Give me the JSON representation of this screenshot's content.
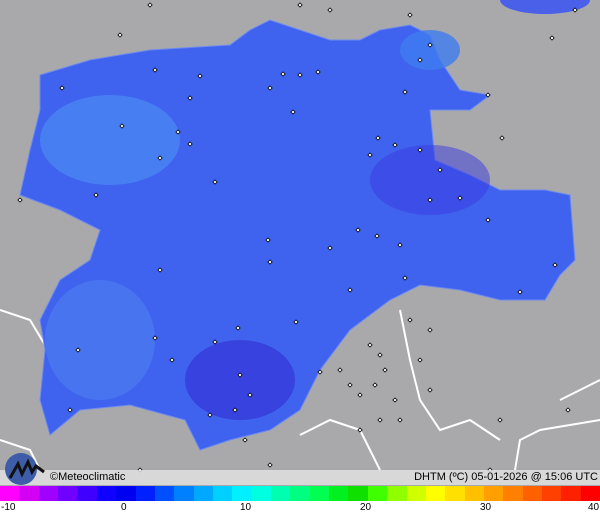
{
  "map": {
    "credit": "©Meteoclimatic",
    "title": "DHTM (ºC) 05-01-2026 @ 15:06 UTC",
    "background_color": "#a9a9ab",
    "region_color": "#3f63ee",
    "logo_icon": "meteoclimatic-logo-icon"
  },
  "legend": {
    "ticks": [
      "-10",
      "0",
      "10",
      "20",
      "30",
      "40"
    ],
    "colors": [
      "#ff00ff",
      "#d400f5",
      "#a000ff",
      "#7000ff",
      "#4000ff",
      "#1000ff",
      "#0000f0",
      "#0020ff",
      "#0050ff",
      "#0080ff",
      "#00a8ff",
      "#00d0ff",
      "#00f0ff",
      "#00ffe0",
      "#00ffb0",
      "#00ff80",
      "#00ff50",
      "#00f020",
      "#10e000",
      "#40ff00",
      "#90ff00",
      "#d0ff00",
      "#ffff00",
      "#ffe000",
      "#ffc000",
      "#ffa000",
      "#ff8000",
      "#ff6000",
      "#ff4000",
      "#ff2000",
      "#ff0000"
    ]
  }
}
